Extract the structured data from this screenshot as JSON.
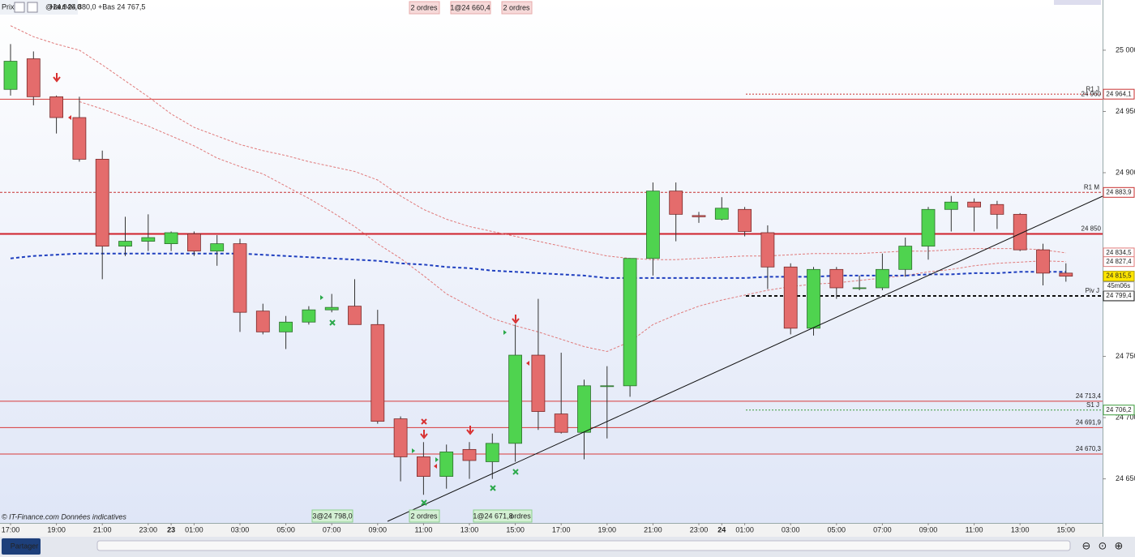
{
  "header": {
    "instrument": "Prix",
    "last": "@24 946,0",
    "ohlc": "Haut 24 880,0 +Bas 24 767,5"
  },
  "orders_top": [
    "2 ordres",
    "1@24 660,4",
    "2 ordres"
  ],
  "orders_bottom": [
    "3@24 798,0",
    "2 ordres",
    "1@24 671,8",
    "ordres"
  ],
  "footer": {
    "credit": "© IT-Finance.com  Données indicatives",
    "share": "Partager"
  },
  "chart_data": {
    "type": "candlestick",
    "categories": [
      "17:00",
      null,
      "19:00",
      null,
      "21:00",
      null,
      "23:00",
      "23",
      "01:00",
      null,
      "03:00",
      null,
      "05:00",
      null,
      "07:00",
      null,
      "09:00",
      null,
      "11:00",
      null,
      "13:00",
      null,
      "15:00",
      null,
      "17:00",
      null,
      "19:00",
      null,
      "21:00",
      null,
      "23:00",
      "24",
      "01:00",
      null,
      "03:00",
      null,
      "05:00",
      null,
      "07:00",
      null,
      "09:00",
      null,
      "11:00",
      null,
      "13:00",
      null,
      "15:00"
    ],
    "open": [
      24968,
      24993,
      24962,
      24945,
      24911,
      24840,
      24844,
      24842,
      24850,
      24836,
      24842,
      24787,
      24770,
      24778,
      24788,
      24791,
      24776,
      24699,
      24668,
      24652,
      24674,
      24664,
      24679,
      24751,
      24703,
      24688,
      24726,
      24726,
      24830,
      24885,
      24865,
      24862,
      24870,
      24851,
      24823,
      24773,
      24821,
      24806,
      24806,
      24821,
      24840,
      24870,
      24876,
      24874,
      24866,
      24837,
      24818
    ],
    "high": [
      25005,
      24999,
      24963,
      24962,
      24918,
      24864,
      24866,
      24852,
      24852,
      24849,
      24846,
      24793,
      24783,
      24791,
      24801,
      24813,
      24788,
      24701,
      24680,
      24678,
      24680,
      24687,
      24776,
      24797,
      24753,
      24731,
      24742,
      24830,
      24892,
      24892,
      24868,
      24880,
      24872,
      24857,
      24826,
      24823,
      24823,
      24816,
      24834,
      24847,
      24872,
      24881,
      24879,
      24877,
      24867,
      24842,
      24826
    ],
    "low": [
      24963,
      24955,
      24932,
      24909,
      24813,
      24832,
      24836,
      24836,
      24832,
      24824,
      24770,
      24768,
      24756,
      24776,
      24786,
      24776,
      24695,
      24648,
      24637,
      24642,
      24650,
      24650,
      24664,
      24690,
      24687,
      24666,
      24683,
      24717,
      24816,
      24844,
      24859,
      24861,
      24848,
      24805,
      24768,
      24767,
      24797,
      24804,
      24804,
      24815,
      24829,
      24852,
      24852,
      24854,
      24836,
      24808,
      24811
    ],
    "close": [
      24991,
      24962,
      24945,
      24911,
      24840,
      24844,
      24847,
      24851,
      24836,
      24842,
      24786,
      24770,
      24778,
      24788,
      24790,
      24776,
      24697,
      24668,
      24652,
      24672,
      24665,
      24679,
      24751,
      24705,
      24688,
      24726,
      24726,
      24830,
      24885,
      24866,
      24864,
      24871,
      24852,
      24823,
      24773,
      24821,
      24806,
      24806,
      24821,
      24840,
      24870,
      24876,
      24872,
      24866,
      24837,
      24818,
      24815.5
    ],
    "last_label": "24 815,5",
    "timer": "45m06s",
    "up_color": "#4fd34f",
    "down_color": "#e46c6c",
    "overlays": [
      {
        "color": "#e07a7a",
        "dash": "3,2",
        "width": 1,
        "last_label": "24 834,5",
        "values": [
          25020,
          25011,
          25005,
          25000,
          24988,
          24975,
          24962,
          24948,
          24937,
          24930,
          24923,
          24918,
          24914,
          24909,
          24905,
          24901,
          24894,
          24881,
          24870,
          24862,
          24856,
          24852,
          24848,
          24844,
          24840,
          24836,
          24832,
          24830,
          24829,
          24829,
          24830,
          24831,
          24832,
          24832,
          24833,
          24834,
          24834,
          24834,
          24835,
          24836,
          24836,
          24837,
          24838,
          24838,
          24838,
          24837,
          24834.5
        ]
      },
      {
        "color": "#e07a7a",
        "dash": "3,2",
        "width": 1,
        "last_label": "24 827,4",
        "values": [
          null,
          null,
          null,
          24958,
          24952,
          24945,
          24938,
          24930,
          24922,
          24912,
          24905,
          24899,
          24889,
          24879,
          24868,
          24856,
          24842,
          24830,
          24816,
          24801,
          24791,
          24781,
          24775,
          24770,
          24764,
          24758,
          24754,
          24762,
          24776,
          24784,
          24791,
          24796,
          24800,
          24804,
          24807,
          24809,
          24810,
          24812,
          24814,
          24816,
          24819,
          24821,
          24824,
          24826,
          24827,
          24828,
          24827.4
        ]
      },
      {
        "color": "#1f3fbf",
        "dash": "4,3",
        "width": 2,
        "values": [
          24830,
          24832,
          24833,
          24834,
          24834,
          24834,
          24834,
          24834,
          24834,
          24834,
          24834,
          24833,
          24832,
          24831,
          24830,
          24829,
          24828,
          24826,
          24825,
          24823,
          24822,
          24820,
          24819,
          24818,
          24817,
          24816,
          24814,
          24814,
          24814,
          24814,
          24814,
          24814,
          24814,
          24815,
          24815,
          24815,
          24816,
          24816,
          24816,
          24816,
          24817,
          24817,
          24818,
          24818,
          24819,
          24819,
          24819
        ]
      }
    ],
    "levels": [
      {
        "value": 24960,
        "label": "24 960",
        "color": "#d83a3a",
        "width": 1
      },
      {
        "value": 24850,
        "label": "24 850",
        "color": "#d0202a",
        "width": 2
      },
      {
        "value": 24713.4,
        "label": "24 713,4",
        "color": "#d83a3a",
        "width": 1
      },
      {
        "value": 24691.9,
        "label": "24 691,9",
        "color": "#d83a3a",
        "width": 1
      },
      {
        "value": 24670.3,
        "label": "24 670,3",
        "color": "#d83a3a",
        "width": 1
      }
    ],
    "monthly_pivots": [
      {
        "name": "R1 M",
        "value": 24883.9,
        "label": "24 883,9",
        "color": "#c83030"
      }
    ],
    "daily_pivots": [
      {
        "name": "R1 J",
        "value": 24964.1,
        "label": "24 964,1",
        "color": "#c83030"
      },
      {
        "name": "S1 J",
        "value": 24706.2,
        "label": "24 706,2",
        "color": "#3a9a3a"
      },
      {
        "name": "Piv J",
        "value": 24799.4,
        "label": "24 799,4",
        "color": "#111111"
      }
    ],
    "ylim": [
      24614,
      25041
    ],
    "yticks": [
      {
        "value": 25000,
        "label": "25 000"
      },
      {
        "value": 24950,
        "label": "24 950"
      },
      {
        "value": 24900,
        "label": "24 900"
      },
      {
        "value": 24750,
        "label": "24 750"
      },
      {
        "value": 24700,
        "label": "24 700"
      },
      {
        "value": 24650,
        "label": "24 650"
      }
    ]
  }
}
